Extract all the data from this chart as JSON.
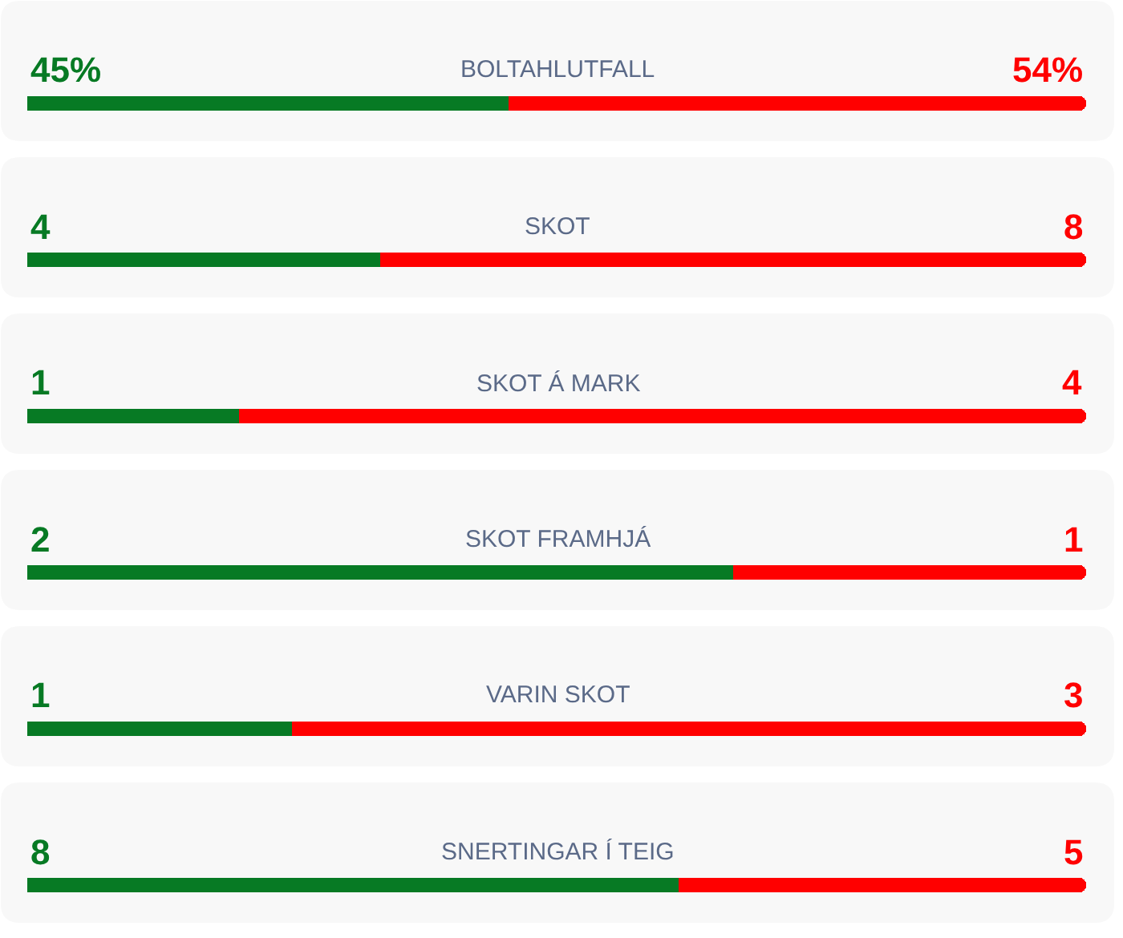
{
  "chart_data": [
    {
      "type": "bar",
      "orientation": "horizontal",
      "stacked": true,
      "title": "BOLTAHLUTFALL",
      "categories": [
        null
      ],
      "tick_labels": false,
      "series": [
        {
          "color": "#077a24",
          "values": [
            45
          ],
          "value_labels": [
            "45%"
          ]
        },
        {
          "color": "#ff0000",
          "values": [
            54
          ],
          "value_labels": [
            "54%"
          ]
        }
      ]
    },
    {
      "type": "bar",
      "orientation": "horizontal",
      "stacked": true,
      "title": "SKOT",
      "categories": [
        null
      ],
      "tick_labels": false,
      "data_labels": true,
      "series": [
        {
          "color": "#077a24",
          "values": [
            4
          ]
        },
        {
          "color": "#ff0000",
          "values": [
            8
          ]
        }
      ]
    },
    {
      "type": "bar",
      "orientation": "horizontal",
      "stacked": true,
      "title": "SKOT Á MARK",
      "categories": [
        null
      ],
      "tick_labels": false,
      "data_labels": true,
      "series": [
        {
          "color": "#077a24",
          "values": [
            1
          ]
        },
        {
          "color": "#ff0000",
          "values": [
            4
          ]
        }
      ]
    },
    {
      "type": "bar",
      "orientation": "horizontal",
      "stacked": true,
      "title": "SKOT FRAMHJÁ",
      "categories": [
        null
      ],
      "tick_labels": false,
      "data_labels": true,
      "series": [
        {
          "color": "#077a24",
          "values": [
            2
          ]
        },
        {
          "color": "#ff0000",
          "values": [
            1
          ]
        }
      ]
    },
    {
      "type": "bar",
      "orientation": "horizontal",
      "stacked": true,
      "title": "VARIN SKOT",
      "categories": [
        null
      ],
      "tick_labels": false,
      "data_labels": true,
      "series": [
        {
          "color": "#077a24",
          "values": [
            1
          ]
        },
        {
          "color": "#ff0000",
          "values": [
            3
          ]
        }
      ]
    },
    {
      "type": "bar",
      "orientation": "horizontal",
      "stacked": true,
      "title": "SNERTINGAR Í TEIG",
      "categories": [
        null
      ],
      "tick_labels": false,
      "data_labels": true,
      "series": [
        {
          "color": "#077a24",
          "values": [
            8
          ]
        },
        {
          "color": "#ff0000",
          "values": [
            5
          ]
        }
      ]
    }
  ]
}
